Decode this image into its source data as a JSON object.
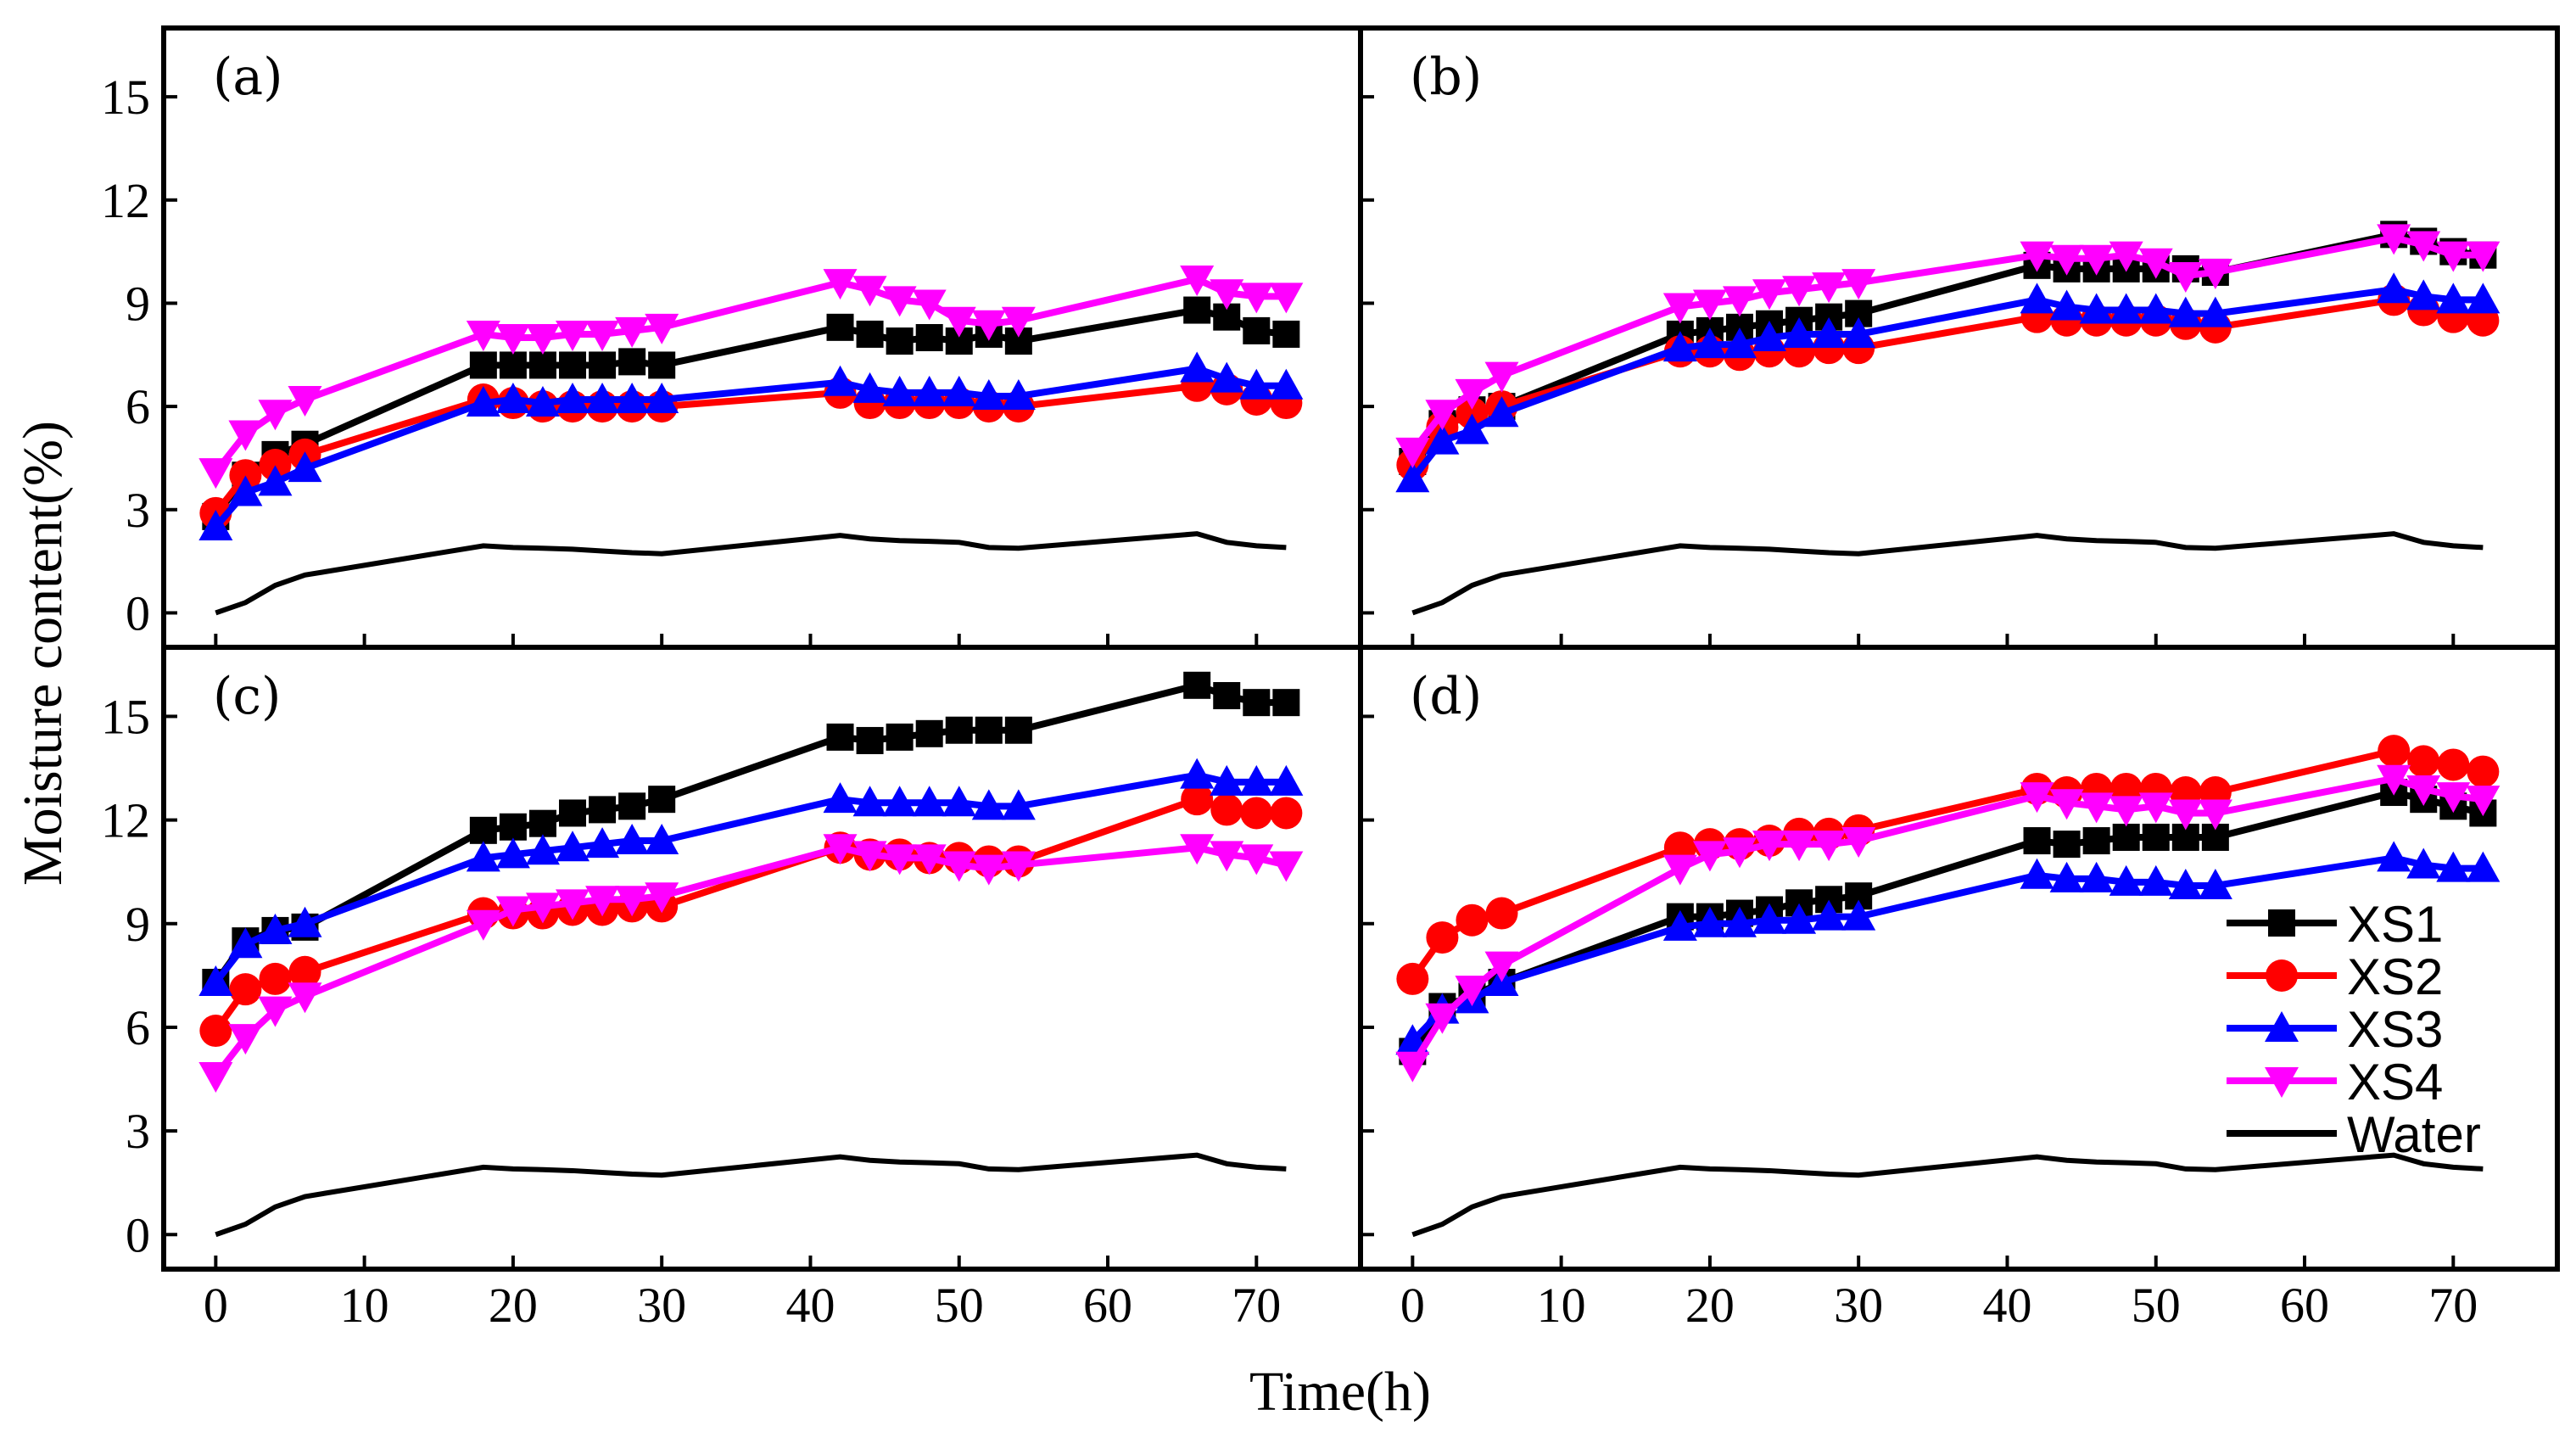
{
  "chart_data": {
    "type": "line",
    "xlabel": "Time(h)",
    "ylabel": "Moisture content(%)",
    "xlim": [
      -3.5,
      77
    ],
    "ylim": [
      -1,
      17
    ],
    "xticks": [
      0,
      10,
      20,
      30,
      40,
      50,
      60,
      70
    ],
    "yticks": [
      0,
      3,
      6,
      9,
      12,
      15
    ],
    "x": [
      0,
      2,
      4,
      6,
      18,
      20,
      22,
      24,
      26,
      28,
      30,
      42,
      44,
      46,
      48,
      50,
      52,
      54,
      66,
      68,
      70,
      72
    ],
    "legend": [
      "XS1",
      "XS2",
      "XS3",
      "XS4",
      "Water"
    ],
    "legend_position": "right side of panel (d)",
    "styles": {
      "XS1": {
        "color": "#000000",
        "marker": "square"
      },
      "XS2": {
        "color": "#ff0000",
        "marker": "circle"
      },
      "XS3": {
        "color": "#0000ff",
        "marker": "triangle-up"
      },
      "XS4": {
        "color": "#ff00ff",
        "marker": "triangle-down"
      },
      "Water": {
        "color": "#000000",
        "marker": "none"
      }
    },
    "water": [
      0,
      0.3,
      0.8,
      1.1,
      1.95,
      1.9,
      1.88,
      1.85,
      1.8,
      1.75,
      1.72,
      2.25,
      2.15,
      2.1,
      2.08,
      2.05,
      1.9,
      1.88,
      2.3,
      2.05,
      1.95,
      1.9
    ],
    "panels": [
      {
        "label": "(a)",
        "series": [
          {
            "name": "XS1",
            "values": [
              2.8,
              4.0,
              4.6,
              4.9,
              7.2,
              7.2,
              7.2,
              7.2,
              7.2,
              7.3,
              7.2,
              8.3,
              8.1,
              7.9,
              8.0,
              7.9,
              8.1,
              7.9,
              8.8,
              8.6,
              8.2,
              8.1
            ]
          },
          {
            "name": "XS2",
            "values": [
              2.9,
              4.0,
              4.3,
              4.6,
              6.2,
              6.1,
              6.0,
              6.0,
              6.0,
              6.0,
              6.0,
              6.4,
              6.1,
              6.1,
              6.1,
              6.1,
              6.0,
              6.0,
              6.6,
              6.5,
              6.2,
              6.1
            ]
          },
          {
            "name": "XS3",
            "values": [
              2.5,
              3.5,
              3.8,
              4.2,
              6.1,
              6.2,
              6.1,
              6.2,
              6.2,
              6.2,
              6.2,
              6.7,
              6.5,
              6.4,
              6.4,
              6.4,
              6.3,
              6.3,
              7.1,
              6.8,
              6.6,
              6.6
            ]
          },
          {
            "name": "XS4",
            "values": [
              4.1,
              5.2,
              5.8,
              6.2,
              8.1,
              8.0,
              8.0,
              8.1,
              8.1,
              8.2,
              8.3,
              9.6,
              9.4,
              9.1,
              9.0,
              8.5,
              8.4,
              8.5,
              9.7,
              9.3,
              9.2,
              9.2
            ]
          }
        ]
      },
      {
        "label": "(b)",
        "series": [
          {
            "name": "XS1",
            "values": [
              4.4,
              5.5,
              5.9,
              6.0,
              8.1,
              8.2,
              8.3,
              8.4,
              8.5,
              8.6,
              8.7,
              10.1,
              10.0,
              10.0,
              10.0,
              10.0,
              10.0,
              9.9,
              11.0,
              10.8,
              10.5,
              10.4
            ]
          },
          {
            "name": "XS2",
            "values": [
              4.3,
              5.4,
              5.8,
              6.0,
              7.6,
              7.6,
              7.5,
              7.6,
              7.6,
              7.7,
              7.7,
              8.6,
              8.5,
              8.5,
              8.5,
              8.5,
              8.4,
              8.3,
              9.1,
              8.8,
              8.6,
              8.5
            ]
          },
          {
            "name": "XS3",
            "values": [
              3.9,
              5.0,
              5.3,
              5.8,
              7.7,
              7.8,
              7.8,
              8.0,
              8.1,
              8.1,
              8.1,
              9.1,
              8.9,
              8.8,
              8.8,
              8.8,
              8.7,
              8.7,
              9.4,
              9.2,
              9.1,
              9.1
            ]
          },
          {
            "name": "XS4",
            "values": [
              4.7,
              5.8,
              6.4,
              6.9,
              8.9,
              9.0,
              9.1,
              9.3,
              9.4,
              9.5,
              9.6,
              10.4,
              10.3,
              10.3,
              10.4,
              10.2,
              9.8,
              9.9,
              10.9,
              10.7,
              10.4,
              10.4
            ]
          }
        ]
      },
      {
        "label": "(c)",
        "series": [
          {
            "name": "XS1",
            "values": [
              7.3,
              8.5,
              8.8,
              8.9,
              11.7,
              11.8,
              11.9,
              12.2,
              12.3,
              12.4,
              12.6,
              14.4,
              14.3,
              14.4,
              14.5,
              14.6,
              14.6,
              14.6,
              15.9,
              15.6,
              15.4,
              15.4
            ]
          },
          {
            "name": "XS2",
            "values": [
              5.9,
              7.1,
              7.4,
              7.6,
              9.3,
              9.3,
              9.3,
              9.4,
              9.4,
              9.5,
              9.5,
              11.2,
              11.0,
              11.0,
              10.9,
              10.9,
              10.8,
              10.8,
              12.6,
              12.3,
              12.2,
              12.2
            ]
          },
          {
            "name": "XS3",
            "values": [
              7.3,
              8.4,
              8.8,
              9.0,
              10.9,
              11.0,
              11.1,
              11.2,
              11.3,
              11.4,
              11.4,
              12.6,
              12.5,
              12.5,
              12.5,
              12.5,
              12.4,
              12.4,
              13.3,
              13.1,
              13.1,
              13.1
            ]
          },
          {
            "name": "XS4",
            "values": [
              4.6,
              5.7,
              6.5,
              6.9,
              9.0,
              9.4,
              9.5,
              9.6,
              9.7,
              9.7,
              9.8,
              11.2,
              11.0,
              10.9,
              10.9,
              10.7,
              10.6,
              10.7,
              11.2,
              11.0,
              10.9,
              10.7
            ]
          }
        ]
      },
      {
        "label": "(d)",
        "series": [
          {
            "name": "XS1",
            "values": [
              5.3,
              6.6,
              6.9,
              7.3,
              9.2,
              9.2,
              9.3,
              9.4,
              9.6,
              9.7,
              9.8,
              11.4,
              11.3,
              11.4,
              11.5,
              11.5,
              11.5,
              11.5,
              12.8,
              12.6,
              12.4,
              12.2
            ]
          },
          {
            "name": "XS2",
            "values": [
              7.4,
              8.6,
              9.1,
              9.3,
              11.2,
              11.3,
              11.3,
              11.4,
              11.6,
              11.6,
              11.7,
              12.9,
              12.8,
              12.9,
              12.9,
              12.9,
              12.8,
              12.8,
              14.0,
              13.7,
              13.6,
              13.4
            ]
          },
          {
            "name": "XS3",
            "values": [
              5.6,
              6.5,
              6.8,
              7.3,
              8.9,
              9.0,
              9.0,
              9.1,
              9.1,
              9.2,
              9.2,
              10.4,
              10.3,
              10.3,
              10.2,
              10.2,
              10.1,
              10.1,
              10.9,
              10.7,
              10.6,
              10.6
            ]
          },
          {
            "name": "XS4",
            "values": [
              4.9,
              6.3,
              7.1,
              7.8,
              10.6,
              11.0,
              11.1,
              11.3,
              11.3,
              11.3,
              11.4,
              12.7,
              12.5,
              12.4,
              12.3,
              12.4,
              12.2,
              12.2,
              13.2,
              12.9,
              12.7,
              12.6
            ]
          }
        ]
      }
    ]
  }
}
